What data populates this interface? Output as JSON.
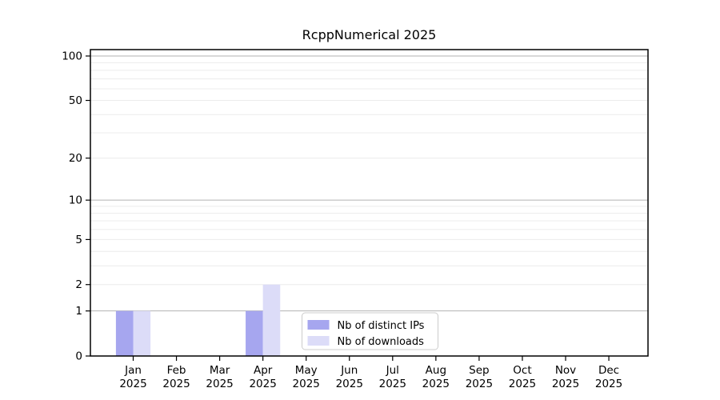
{
  "chart_data": {
    "type": "bar",
    "title": "RcppNumerical 2025",
    "categories": [
      "Jan",
      "Feb",
      "Mar",
      "Apr",
      "May",
      "Jun",
      "Jul",
      "Aug",
      "Sep",
      "Oct",
      "Nov",
      "Dec"
    ],
    "category_year": "2025",
    "series": [
      {
        "name": "Nb of distinct IPs",
        "key": "distinct-ips",
        "color": "#a6a6ef",
        "values": [
          1,
          0,
          0,
          1,
          0,
          0,
          0,
          0,
          0,
          0,
          0,
          0
        ]
      },
      {
        "name": "Nb of downloads",
        "key": "downloads",
        "color": "#dcdcf8",
        "values": [
          1,
          0,
          0,
          2,
          0,
          0,
          0,
          0,
          0,
          0,
          0,
          0
        ]
      }
    ],
    "y_axis": {
      "scale": "log1p",
      "range": [
        0,
        100
      ],
      "tick_values": [
        0,
        1,
        2,
        5,
        10,
        20,
        50,
        100
      ],
      "major_gridlines": [
        1,
        10,
        100
      ],
      "minor_gridlines": [
        2,
        3,
        4,
        5,
        6,
        7,
        8,
        9,
        20,
        30,
        40,
        50,
        60,
        70,
        80,
        90
      ]
    },
    "legend": {
      "position": "lower center inside plot"
    },
    "colors": {
      "background": "#ffffff",
      "major_grid": "#b2b2b2",
      "minor_grid": "#ececec",
      "spine": "#000000",
      "tick": "#000000",
      "text": "#000000",
      "legend_border": "#cccccc",
      "legend_bg": "#ffffff"
    }
  }
}
